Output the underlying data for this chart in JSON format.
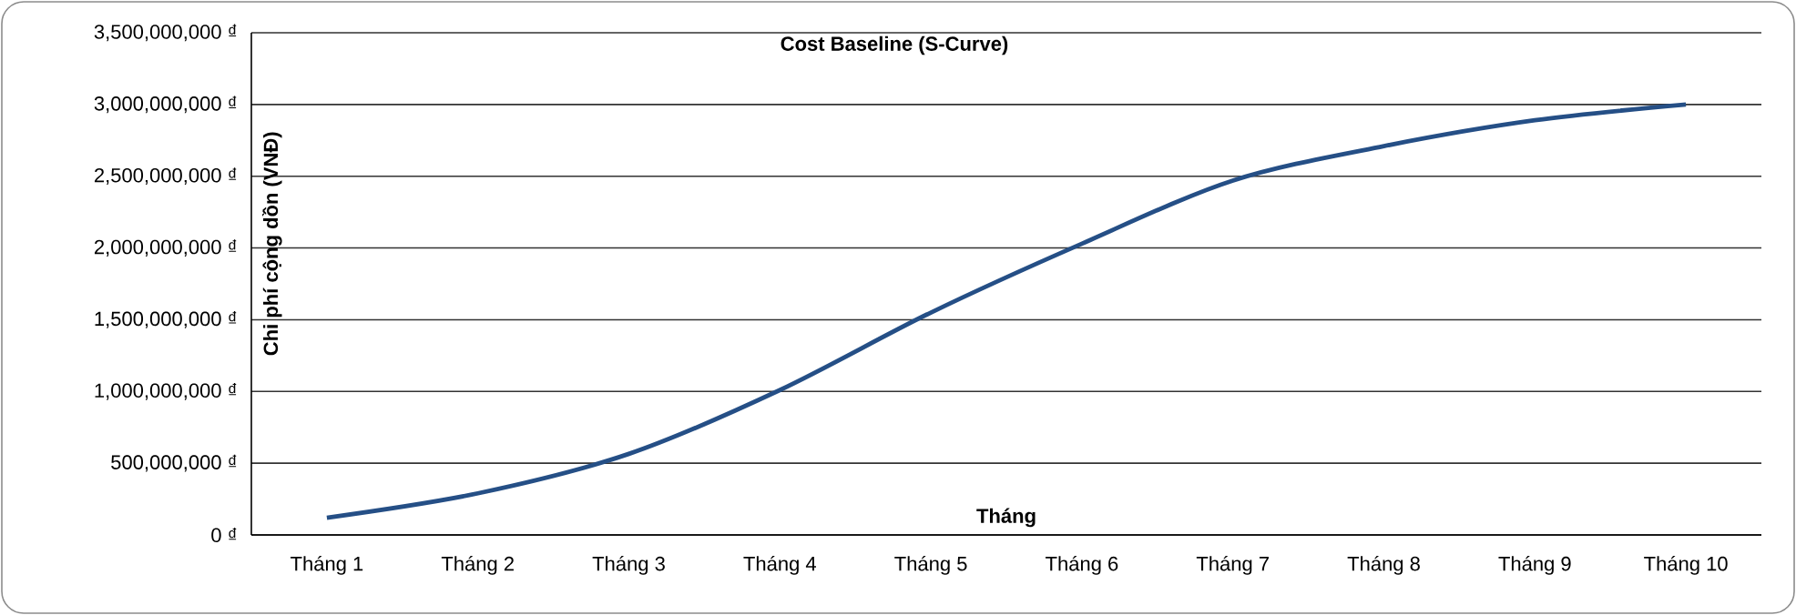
{
  "chart_data": {
    "type": "line",
    "title": "Cost Baseline (S-Curve)",
    "xlabel": "Tháng",
    "ylabel": "Chi phí cộng dồn (VNĐ)",
    "categories": [
      "Tháng 1",
      "Tháng 2",
      "Tháng 3",
      "Tháng 4",
      "Tháng 5",
      "Tháng 6",
      "Tháng 7",
      "Tháng 8",
      "Tháng 9",
      "Tháng 10"
    ],
    "series": [
      {
        "color": "#254f86",
        "values": [
          120000000,
          290000000,
          565000000,
          1010000000,
          1550000000,
          2030000000,
          2470000000,
          2710000000,
          2890000000,
          3000000000
        ]
      }
    ],
    "ylim": [
      0,
      3500000000
    ],
    "yticks": [
      {
        "value": 0,
        "label": "0 ₫"
      },
      {
        "value": 500000000,
        "label": "500,000,000 ₫"
      },
      {
        "value": 1000000000,
        "label": "1,000,000,000 ₫"
      },
      {
        "value": 1500000000,
        "label": "1,500,000,000 ₫"
      },
      {
        "value": 2000000000,
        "label": "2,000,000,000 ₫"
      },
      {
        "value": 2500000000,
        "label": "2,500,000,000 ₫"
      },
      {
        "value": 3000000000,
        "label": "3,000,000,000 ₫"
      },
      {
        "value": 3500000000,
        "label": "3,500,000,000 ₫"
      }
    ],
    "grid": "y",
    "marker": "none"
  }
}
